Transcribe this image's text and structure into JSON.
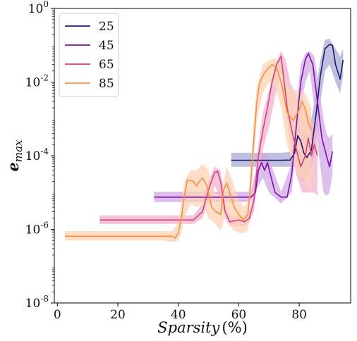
{
  "chart_data": {
    "type": "line",
    "title": "",
    "xlabel": "Sparsity (%)",
    "ylabel": "e_max",
    "xlim": [
      -1,
      97
    ],
    "ylim": [
      1e-08,
      1
    ],
    "yscale": "log",
    "x_ticks": [
      0,
      20,
      40,
      60,
      80
    ],
    "y_ticks": [
      {
        "value": 1e-08,
        "base": "10",
        "exp": "-8"
      },
      {
        "value": 1e-06,
        "base": "10",
        "exp": "-6"
      },
      {
        "value": 0.0001,
        "base": "10",
        "exp": "-4"
      },
      {
        "value": 0.01,
        "base": "10",
        "exp": "-2"
      },
      {
        "value": 1,
        "base": "10",
        "exp": "0"
      }
    ],
    "grid": false,
    "legend_position": "top-left",
    "series": [
      {
        "name": "25",
        "color": "#1f1b6e",
        "band_color": "#a9a9d4",
        "points": [
          [
            57.5,
            7.5e-05
          ],
          [
            66,
            7.5e-05
          ],
          [
            74,
            7.5e-05
          ],
          [
            77,
            7.6e-05
          ],
          [
            78.5,
            0.00012
          ],
          [
            79.5,
            0.00035
          ],
          [
            80.5,
            0.00025
          ],
          [
            81.5,
            0.00012
          ],
          [
            82.5,
            9e-05
          ],
          [
            84,
            0.00014
          ],
          [
            85.5,
            0.0012
          ],
          [
            87,
            0.015
          ],
          [
            88.5,
            0.08
          ],
          [
            90,
            0.105
          ],
          [
            91,
            0.1
          ],
          [
            92,
            0.03
          ],
          [
            93.5,
            0.012
          ],
          [
            94.5,
            0.04
          ]
        ],
        "lower": [
          [
            57.5,
            5e-05
          ],
          [
            74,
            5e-05
          ],
          [
            77,
            5e-05
          ],
          [
            79,
            5e-05
          ],
          [
            81,
            2e-05
          ],
          [
            83,
            3e-05
          ],
          [
            85,
            0.0001
          ],
          [
            87,
            0.003
          ],
          [
            88.5,
            0.02
          ],
          [
            90,
            0.03
          ],
          [
            92,
            0.01
          ],
          [
            93.5,
            0.005
          ],
          [
            94.5,
            0.015
          ]
        ],
        "upper": [
          [
            57.5,
            0.00012
          ],
          [
            74,
            0.00012
          ],
          [
            77,
            0.000125
          ],
          [
            79,
            0.0006
          ],
          [
            81,
            0.0006
          ],
          [
            83,
            0.0003
          ],
          [
            85,
            0.003
          ],
          [
            87,
            0.04
          ],
          [
            88.5,
            0.14
          ],
          [
            90,
            0.15
          ],
          [
            92,
            0.08
          ],
          [
            93.5,
            0.05
          ],
          [
            94.5,
            0.08
          ]
        ]
      },
      {
        "name": "45",
        "color": "#7b0fb0",
        "band_color": "#d3aae6",
        "points": [
          [
            32,
            7.5e-06
          ],
          [
            60,
            7.5e-06
          ],
          [
            64,
            7.5e-06
          ],
          [
            65.5,
            1e-05
          ],
          [
            66.5,
            4e-05
          ],
          [
            67.5,
            6.5e-05
          ],
          [
            68.5,
            4e-05
          ],
          [
            69.5,
            6.5e-05
          ],
          [
            70.5,
            3e-05
          ],
          [
            72,
            1e-05
          ],
          [
            74,
            7.5e-06
          ],
          [
            76,
            7.5e-06
          ],
          [
            77.5,
            3e-05
          ],
          [
            79,
            0.0006
          ],
          [
            80.5,
            0.01
          ],
          [
            82,
            0.04
          ],
          [
            83,
            0.06
          ],
          [
            84.5,
            0.03
          ],
          [
            86,
            0.003
          ],
          [
            87.5,
            0.0003
          ],
          [
            89,
            0.0001
          ],
          [
            90,
            5e-05
          ],
          [
            91,
            0.00013
          ]
        ],
        "lower": [
          [
            32,
            5.5e-06
          ],
          [
            64,
            5.5e-06
          ],
          [
            66.5,
            1.5e-05
          ],
          [
            68,
            2.5e-05
          ],
          [
            70,
            1e-05
          ],
          [
            74,
            5e-06
          ],
          [
            77.5,
            1e-05
          ],
          [
            79,
            0.0002
          ],
          [
            80.5,
            0.002
          ],
          [
            82,
            0.01
          ],
          [
            83.5,
            0.02
          ],
          [
            85,
            0.002
          ],
          [
            86.5,
            0.0001
          ],
          [
            88,
            1e-05
          ],
          [
            89,
            8e-06
          ],
          [
            90,
            1e-05
          ],
          [
            91,
            3e-05
          ]
        ],
        "upper": [
          [
            32,
            1.05e-05
          ],
          [
            64,
            1.05e-05
          ],
          [
            66.5,
            8e-05
          ],
          [
            68,
            0.00012
          ],
          [
            70,
            8e-05
          ],
          [
            74,
            1.05e-05
          ],
          [
            77.5,
            6e-05
          ],
          [
            79,
            0.002
          ],
          [
            80.5,
            0.03
          ],
          [
            82,
            0.06
          ],
          [
            83.5,
            0.07
          ],
          [
            85,
            0.05
          ],
          [
            86.5,
            0.008
          ],
          [
            88,
            0.001
          ],
          [
            89,
            0.0004
          ],
          [
            90,
            0.0003
          ],
          [
            91,
            0.0004
          ]
        ]
      },
      {
        "name": "65",
        "color": "#d6407d",
        "band_color": "#f3b2cd",
        "points": [
          [
            14,
            1.8e-06
          ],
          [
            35,
            1.8e-06
          ],
          [
            45,
            1.8e-06
          ],
          [
            48,
            3e-06
          ],
          [
            50,
            1.2e-05
          ],
          [
            52,
            3.5e-05
          ],
          [
            53,
            3.8e-05
          ],
          [
            54,
            2e-05
          ],
          [
            55.5,
            3e-06
          ],
          [
            57,
            1.6e-06
          ],
          [
            60,
            1.8e-06
          ],
          [
            62,
            1.6e-06
          ],
          [
            63.5,
            2e-06
          ],
          [
            65,
            6e-06
          ],
          [
            66.5,
            0.0001
          ],
          [
            68,
            0.0005
          ],
          [
            69.5,
            0.002
          ],
          [
            71,
            0.01
          ],
          [
            72.5,
            0.03
          ],
          [
            74,
            0.05
          ],
          [
            75,
            0.01
          ],
          [
            76,
            0.002
          ],
          [
            77.5,
            0.0005
          ],
          [
            79,
            0.00015
          ],
          [
            80.5,
            5e-05
          ],
          [
            82,
            0.0001
          ],
          [
            83,
            0.0003
          ],
          [
            84,
            0.0001
          ],
          [
            85,
            0.0002
          ],
          [
            86,
            0.0001
          ]
        ],
        "lower": [
          [
            14,
            1.4e-06
          ],
          [
            45,
            1.4e-06
          ],
          [
            48,
            2e-06
          ],
          [
            50,
            6e-06
          ],
          [
            52,
            1.5e-05
          ],
          [
            54,
            8e-06
          ],
          [
            55.5,
            2e-06
          ],
          [
            57,
            1.2e-06
          ],
          [
            62,
            1.2e-06
          ],
          [
            63.5,
            1.5e-06
          ],
          [
            65,
            3e-06
          ],
          [
            66.5,
            3e-05
          ],
          [
            68,
            0.00015
          ],
          [
            70,
            0.0006
          ],
          [
            72,
            0.004
          ],
          [
            74,
            0.02
          ],
          [
            75.5,
            0.002
          ],
          [
            77,
            0.0002
          ],
          [
            79,
            3e-05
          ],
          [
            81,
            1e-05
          ],
          [
            83,
            1e-05
          ],
          [
            85,
            1e-05
          ],
          [
            86,
            8e-06
          ]
        ],
        "upper": [
          [
            14,
            2.4e-06
          ],
          [
            45,
            2.4e-06
          ],
          [
            48,
            5e-06
          ],
          [
            50,
            2e-05
          ],
          [
            52,
            5e-05
          ],
          [
            54,
            4e-05
          ],
          [
            55.5,
            5e-06
          ],
          [
            57,
            2.4e-06
          ],
          [
            62,
            2.4e-06
          ],
          [
            63.5,
            3e-06
          ],
          [
            65,
            1e-05
          ],
          [
            66.5,
            0.0002
          ],
          [
            68,
            0.0015
          ],
          [
            70,
            0.006
          ],
          [
            72,
            0.03
          ],
          [
            74,
            0.07
          ],
          [
            75.5,
            0.04
          ],
          [
            77,
            0.01
          ],
          [
            79,
            0.004
          ],
          [
            81,
            0.002
          ],
          [
            83,
            0.0015
          ],
          [
            85,
            0.0008
          ],
          [
            86,
            0.0005
          ]
        ]
      },
      {
        "name": "85",
        "color": "#fb8d3d",
        "band_color": "#fdd3b4",
        "points": [
          [
            2.5,
            6.5e-07
          ],
          [
            20,
            6.5e-07
          ],
          [
            35,
            6.5e-07
          ],
          [
            38,
            6.5e-07
          ],
          [
            39,
            5.8e-07
          ],
          [
            40,
            8e-07
          ],
          [
            41,
            2e-06
          ],
          [
            42,
            8e-06
          ],
          [
            43,
            2.2e-05
          ],
          [
            45,
            2e-05
          ],
          [
            46,
            1.5e-05
          ],
          [
            47,
            2e-05
          ],
          [
            48,
            2.5e-05
          ],
          [
            49.5,
            1.5e-05
          ],
          [
            51,
            4e-06
          ],
          [
            52.5,
            3e-06
          ],
          [
            54,
            2.5e-06
          ],
          [
            55,
            1.2e-05
          ],
          [
            56,
            1.8e-05
          ],
          [
            57,
            1e-05
          ],
          [
            58.5,
            4e-06
          ],
          [
            60,
            2.5e-06
          ],
          [
            61.5,
            1.8e-06
          ],
          [
            63,
            2.5e-06
          ],
          [
            64,
            2e-05
          ],
          [
            65,
            0.0003
          ],
          [
            66,
            0.003
          ],
          [
            67,
            0.01
          ],
          [
            68.5,
            0.018
          ],
          [
            70,
            0.025
          ],
          [
            71,
            0.03
          ],
          [
            72.5,
            0.025
          ],
          [
            74,
            0.01
          ],
          [
            76,
            0.0015
          ],
          [
            78,
            0.0009
          ],
          [
            80,
            0.0018
          ],
          [
            81,
            0.003
          ],
          [
            82,
            0.0018
          ],
          [
            83,
            0.0008
          ],
          [
            84,
            0.0005
          ]
        ],
        "lower": [
          [
            2.5,
            5e-07
          ],
          [
            35,
            5e-07
          ],
          [
            38,
            4.5e-07
          ],
          [
            40,
            5e-07
          ],
          [
            41,
            8e-07
          ],
          [
            42,
            2e-06
          ],
          [
            44,
            5e-06
          ],
          [
            46,
            4e-06
          ],
          [
            48,
            5e-06
          ],
          [
            50,
            2e-06
          ],
          [
            52,
            1.5e-06
          ],
          [
            54,
            9e-07
          ],
          [
            56,
            3e-06
          ],
          [
            58,
            1e-06
          ],
          [
            60,
            8e-07
          ],
          [
            62,
            8e-07
          ],
          [
            63,
            1e-06
          ],
          [
            64,
            8e-06
          ],
          [
            65,
            0.0001
          ],
          [
            66,
            0.001
          ],
          [
            68,
            0.005
          ],
          [
            70,
            0.01
          ],
          [
            72,
            0.008
          ],
          [
            74,
            0.002
          ],
          [
            76,
            0.0002
          ],
          [
            78,
            6e-05
          ],
          [
            80,
            3e-05
          ],
          [
            82,
            2e-05
          ],
          [
            84,
            1e-05
          ]
        ],
        "upper": [
          [
            2.5,
            9e-07
          ],
          [
            35,
            9e-07
          ],
          [
            38,
            9e-07
          ],
          [
            40,
            1.5e-06
          ],
          [
            41,
            5e-06
          ],
          [
            42,
            2e-05
          ],
          [
            44,
            4e-05
          ],
          [
            46,
            4e-05
          ],
          [
            48,
            6e-05
          ],
          [
            50,
            4e-05
          ],
          [
            52,
            1e-05
          ],
          [
            54,
            8e-06
          ],
          [
            56,
            5e-05
          ],
          [
            58,
            2e-05
          ],
          [
            60,
            6e-06
          ],
          [
            62,
            4e-06
          ],
          [
            63,
            6e-06
          ],
          [
            64,
            5e-05
          ],
          [
            65,
            0.001
          ],
          [
            66,
            0.008
          ],
          [
            68,
            0.03
          ],
          [
            70,
            0.04
          ],
          [
            72,
            0.045
          ],
          [
            74,
            0.03
          ],
          [
            76,
            0.008
          ],
          [
            78,
            0.006
          ],
          [
            80,
            0.006
          ],
          [
            82,
            0.005
          ],
          [
            84,
            0.002
          ]
        ]
      }
    ]
  }
}
